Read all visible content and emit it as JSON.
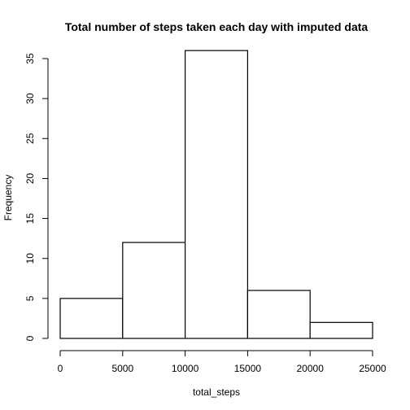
{
  "chart_data": {
    "type": "bar",
    "title": "Total number of steps taken each day with imputed data",
    "xlabel": "total_steps",
    "ylabel": "Frequency",
    "bins": [
      {
        "x0": 0,
        "x1": 5000,
        "value": 5
      },
      {
        "x0": 5000,
        "x1": 10000,
        "value": 12
      },
      {
        "x0": 10000,
        "x1": 15000,
        "value": 36
      },
      {
        "x0": 15000,
        "x1": 20000,
        "value": 6
      },
      {
        "x0": 20000,
        "x1": 25000,
        "value": 2
      }
    ],
    "xlim": [
      0,
      25000
    ],
    "ylim": [
      0,
      35
    ],
    "xticks": [
      0,
      5000,
      10000,
      15000,
      20000,
      25000
    ],
    "yticks": [
      0,
      5,
      10,
      15,
      20,
      25,
      30,
      35
    ],
    "grid": false,
    "legend": "none"
  }
}
